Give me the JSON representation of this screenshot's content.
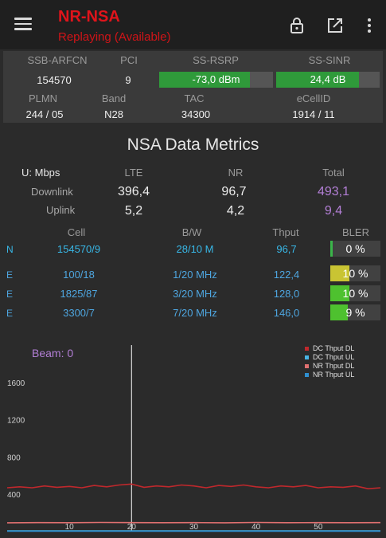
{
  "app": {
    "title": "NR-NSA",
    "subtitle": "Replaying (Available)"
  },
  "cell": {
    "ssb_arfcn": {
      "label": "SSB-ARFCN",
      "value": "154570"
    },
    "pci": {
      "label": "PCI",
      "value": "9"
    },
    "ss_rsrp": {
      "label": "SS-RSRP",
      "value": "-73,0 dBm",
      "level": 0.8
    },
    "ss_sinr": {
      "label": "SS-SINR",
      "value": "24,4 dB",
      "level": 0.8
    },
    "plmn": {
      "label": "PLMN",
      "value": "244 / 05"
    },
    "band": {
      "label": "Band",
      "value": "N28"
    },
    "tac": {
      "label": "TAC",
      "value": "34300"
    },
    "ecellid": {
      "label": "eCellID",
      "value": "1914 / 11"
    }
  },
  "metrics": {
    "title": "NSA Data Metrics",
    "unit": "U: Mbps",
    "col_lte": "LTE",
    "col_nr": "NR",
    "col_total": "Total",
    "downlink": {
      "label": "Downlink",
      "lte": "396,4",
      "nr": "96,7",
      "total": "493,1"
    },
    "uplink": {
      "label": "Uplink",
      "lte": "5,2",
      "nr": "4,2",
      "total": "9,4"
    }
  },
  "carriers": {
    "headers": {
      "cell": "Cell",
      "bw": "B/W",
      "thput": "Thput",
      "bler": "BLER"
    },
    "rows": [
      {
        "type": "N",
        "cell": "154570/9",
        "bw": "28/10 M",
        "thput": "96,7",
        "bler": "0 %",
        "bler_pct": 0,
        "bler_color": "#3bb54a"
      },
      {
        "type": "E",
        "cell": "100/18",
        "bw": "1/20 MHz",
        "thput": "122,4",
        "bler": "10 %",
        "bler_pct": 10,
        "bler_color": "#c9c433"
      },
      {
        "type": "E",
        "cell": "1825/87",
        "bw": "3/20 MHz",
        "thput": "128,0",
        "bler": "10 %",
        "bler_pct": 10,
        "bler_color": "#4ec12f"
      },
      {
        "type": "E",
        "cell": "3300/7",
        "bw": "7/20 MHz",
        "thput": "146,0",
        "bler": "9 %",
        "bler_pct": 9,
        "bler_color": "#4ec12f"
      }
    ]
  },
  "colors": {
    "nr_cell": "#38b8e8",
    "lte_cell": "#4ea6e0",
    "total": "#b37fd6",
    "title": "#e0141b"
  },
  "icons": {
    "menu": "hamburger-menu-icon",
    "lock": "lock-icon",
    "open": "open-external-icon",
    "more": "more-vertical-icon"
  },
  "chart_data": {
    "type": "line",
    "annotation": "Beam: 0",
    "x_ticks": [
      10,
      20,
      30,
      40,
      50
    ],
    "y_ticks": [
      400,
      800,
      1200,
      1600
    ],
    "xlim": [
      0,
      60
    ],
    "ylim": [
      0,
      2000
    ],
    "cursor_x": 20,
    "grid": false,
    "legend_position": "top-right",
    "series": [
      {
        "name": "DC Thput DL",
        "color": "#c0282c",
        "x": [
          0,
          2,
          4,
          6,
          8,
          10,
          12,
          14,
          16,
          18,
          20,
          22,
          24,
          26,
          28,
          30,
          32,
          34,
          36,
          38,
          40,
          42,
          44,
          46,
          48,
          50,
          52,
          54,
          56,
          58,
          60
        ],
        "values": [
          470,
          480,
          470,
          490,
          475,
          485,
          470,
          495,
          480,
          500,
          510,
          475,
          490,
          480,
          500,
          490,
          470,
          495,
          485,
          500,
          480,
          470,
          490,
          480,
          495,
          470,
          480,
          475,
          490,
          460,
          470
        ]
      },
      {
        "name": "DC Thput UL",
        "color": "#48b4e4",
        "x": [
          0,
          60
        ],
        "values": [
          8,
          8
        ]
      },
      {
        "name": "NR Thput DL",
        "color": "#e07070",
        "x": [
          0,
          5,
          10,
          15,
          20,
          25,
          30,
          35,
          40,
          45,
          50,
          55,
          60
        ],
        "values": [
          95,
          97,
          96,
          98,
          97,
          96,
          97,
          95,
          98,
          96,
          97,
          96,
          97
        ]
      },
      {
        "name": "NR Thput UL",
        "color": "#2f8fd0",
        "x": [
          0,
          60
        ],
        "values": [
          4,
          4
        ]
      }
    ]
  }
}
